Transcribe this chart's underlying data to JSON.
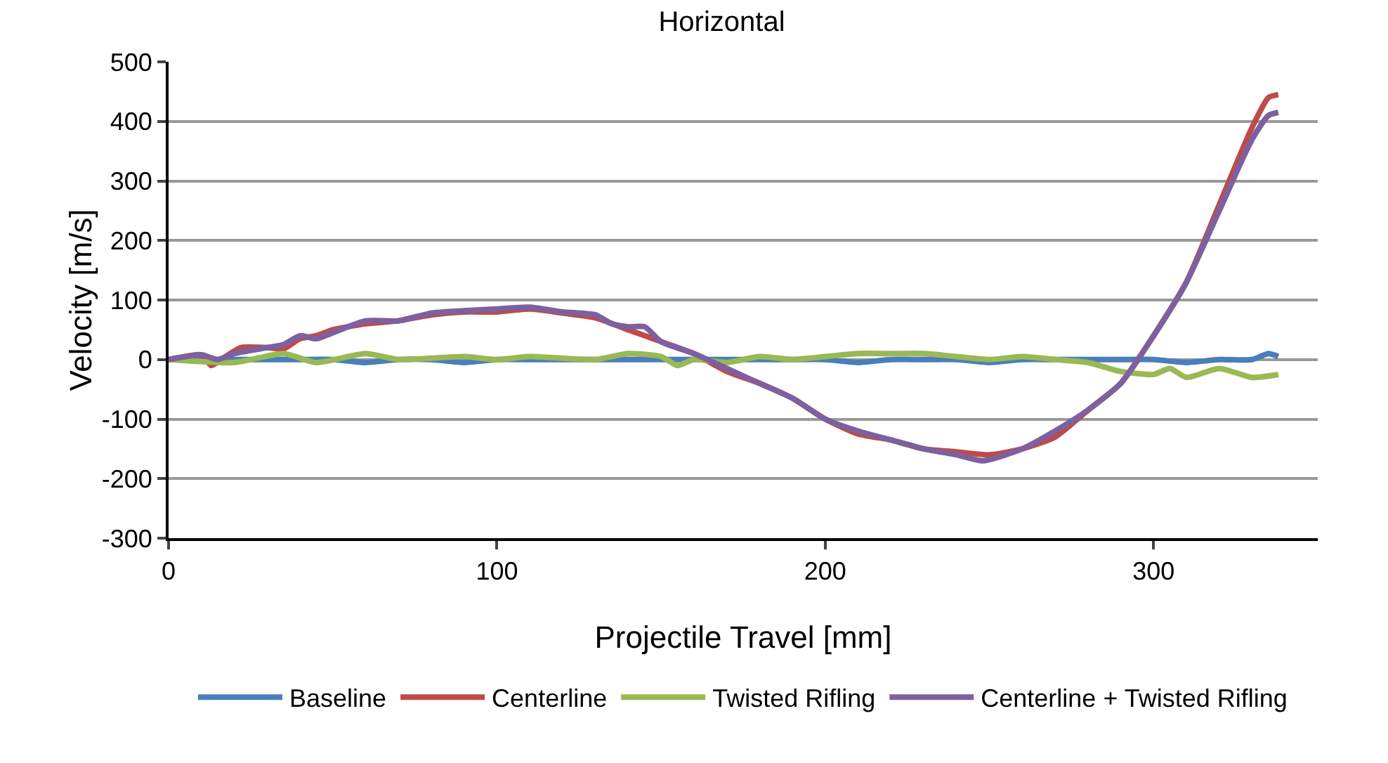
{
  "chart_data": {
    "type": "line",
    "title": "Horizontal",
    "xlabel": "Projectile Travel [mm]",
    "ylabel": "Velocity [m/s]",
    "xlim": [
      0,
      350
    ],
    "xticks": [
      0,
      100,
      200,
      300
    ],
    "ylim": [
      -300,
      500
    ],
    "yticks": [
      -300,
      -200,
      -100,
      0,
      100,
      200,
      300,
      400,
      500
    ],
    "grid": "y",
    "legend": "bottom",
    "marker": "none",
    "line_style": "solid",
    "series": [
      {
        "name": "Baseline",
        "color": "#4a7ebb",
        "x": [
          0,
          10,
          20,
          30,
          40,
          50,
          60,
          70,
          80,
          90,
          100,
          110,
          120,
          130,
          140,
          150,
          160,
          170,
          180,
          190,
          200,
          210,
          220,
          230,
          240,
          250,
          260,
          270,
          280,
          290,
          300,
          310,
          320,
          330,
          335,
          338
        ],
        "values": [
          0,
          0,
          0,
          0,
          0,
          0,
          -5,
          0,
          0,
          -5,
          0,
          0,
          0,
          0,
          0,
          0,
          0,
          0,
          0,
          0,
          0,
          -5,
          0,
          0,
          0,
          -5,
          0,
          0,
          0,
          0,
          0,
          -5,
          0,
          0,
          10,
          5
        ]
      },
      {
        "name": "Centerline",
        "color": "#be4b48",
        "x": [
          0,
          5,
          10,
          13,
          16,
          22,
          30,
          35,
          40,
          45,
          50,
          60,
          70,
          80,
          90,
          100,
          110,
          120,
          130,
          140,
          150,
          160,
          170,
          180,
          190,
          200,
          210,
          220,
          230,
          240,
          250,
          260,
          270,
          280,
          290,
          300,
          310,
          320,
          330,
          335,
          338
        ],
        "values": [
          0,
          5,
          8,
          -10,
          0,
          20,
          20,
          18,
          35,
          40,
          50,
          60,
          65,
          75,
          80,
          80,
          85,
          78,
          70,
          50,
          30,
          10,
          -20,
          -40,
          -65,
          -100,
          -125,
          -135,
          -150,
          -155,
          -160,
          -150,
          -130,
          -85,
          -40,
          40,
          130,
          260,
          390,
          440,
          445
        ]
      },
      {
        "name": "Twisted Rifling",
        "color": "#98b954",
        "x": [
          0,
          20,
          35,
          45,
          60,
          70,
          90,
          100,
          110,
          130,
          140,
          150,
          155,
          160,
          170,
          180,
          190,
          200,
          210,
          220,
          230,
          240,
          250,
          260,
          270,
          280,
          290,
          300,
          305,
          310,
          320,
          330,
          338
        ],
        "values": [
          0,
          -5,
          10,
          -5,
          10,
          0,
          5,
          0,
          5,
          0,
          10,
          5,
          -10,
          0,
          -5,
          5,
          0,
          5,
          10,
          10,
          10,
          5,
          0,
          5,
          0,
          -5,
          -20,
          -25,
          -15,
          -30,
          -15,
          -30,
          -25
        ]
      },
      {
        "name": "Centerline + Twisted Rifling",
        "color": "#7d60a0",
        "x": [
          0,
          10,
          15,
          20,
          30,
          35,
          40,
          45,
          50,
          60,
          70,
          80,
          90,
          100,
          110,
          120,
          130,
          135,
          140,
          145,
          150,
          160,
          170,
          180,
          190,
          200,
          210,
          220,
          230,
          240,
          248,
          260,
          270,
          280,
          290,
          300,
          310,
          320,
          330,
          335,
          338
        ],
        "values": [
          0,
          8,
          0,
          10,
          20,
          25,
          40,
          35,
          45,
          65,
          65,
          78,
          82,
          85,
          88,
          80,
          75,
          60,
          55,
          55,
          30,
          10,
          -15,
          -40,
          -65,
          -100,
          -120,
          -135,
          -150,
          -160,
          -170,
          -150,
          -120,
          -85,
          -40,
          40,
          130,
          250,
          370,
          410,
          415
        ]
      }
    ]
  }
}
